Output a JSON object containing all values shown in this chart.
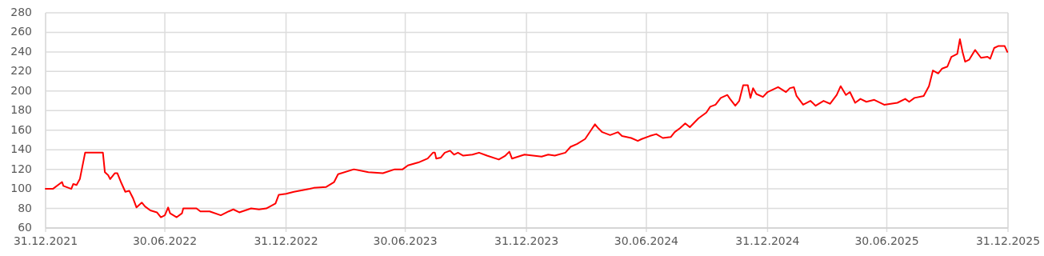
{
  "chart_data": {
    "type": "line",
    "x": [
      "2021-12-31",
      "2022-01-11",
      "2022-01-25",
      "2022-01-27",
      "2022-02-08",
      "2022-02-11",
      "2022-02-16",
      "2022-02-21",
      "2022-03-01",
      "2022-03-28",
      "2022-03-31",
      "2022-04-05",
      "2022-04-08",
      "2022-04-15",
      "2022-04-19",
      "2022-04-25",
      "2022-05-01",
      "2022-05-07",
      "2022-05-13",
      "2022-05-18",
      "2022-05-26",
      "2022-05-31",
      "2022-06-08",
      "2022-06-18",
      "2022-06-24",
      "2022-06-30",
      "2022-07-05",
      "2022-07-08",
      "2022-07-18",
      "2022-07-26",
      "2022-07-28",
      "2022-08-17",
      "2022-08-23",
      "2022-09-06",
      "2022-09-23",
      "2022-10-05",
      "2022-10-12",
      "2022-10-21",
      "2022-11-08",
      "2022-11-20",
      "2022-12-01",
      "2022-12-15",
      "2022-12-20",
      "2022-12-31",
      "2023-01-12",
      "2023-02-05",
      "2023-02-11",
      "2023-03-02",
      "2023-03-14",
      "2023-03-20",
      "2023-04-13",
      "2023-05-05",
      "2023-05-27",
      "2023-06-14",
      "2023-06-26",
      "2023-07-04",
      "2023-07-20",
      "2023-08-03",
      "2023-08-11",
      "2023-08-14",
      "2023-08-16",
      "2023-08-23",
      "2023-08-29",
      "2023-09-06",
      "2023-09-12",
      "2023-09-18",
      "2023-09-26",
      "2023-10-10",
      "2023-10-20",
      "2023-11-01",
      "2023-11-19",
      "2023-11-29",
      "2023-12-05",
      "2023-12-09",
      "2023-12-28",
      "2024-01-23",
      "2024-02-02",
      "2024-02-12",
      "2024-02-28",
      "2024-03-07",
      "2024-03-17",
      "2024-03-29",
      "2024-04-08",
      "2024-04-13",
      "2024-04-18",
      "2024-04-24",
      "2024-05-06",
      "2024-05-18",
      "2024-05-24",
      "2024-06-07",
      "2024-06-17",
      "2024-06-23",
      "2024-07-05",
      "2024-07-15",
      "2024-07-25",
      "2024-08-06",
      "2024-08-12",
      "2024-08-20",
      "2024-08-28",
      "2024-09-04",
      "2024-09-17",
      "2024-09-29",
      "2024-10-05",
      "2024-10-13",
      "2024-10-21",
      "2024-10-31",
      "2024-11-04",
      "2024-11-12",
      "2024-11-18",
      "2024-11-24",
      "2024-12-01",
      "2024-12-05",
      "2024-12-09",
      "2024-12-14",
      "2024-12-24",
      "2024-12-31",
      "2025-01-16",
      "2025-01-28",
      "2025-02-03",
      "2025-02-09",
      "2025-02-13",
      "2025-02-23",
      "2025-03-06",
      "2025-03-14",
      "2025-03-26",
      "2025-04-05",
      "2025-04-15",
      "2025-04-21",
      "2025-04-29",
      "2025-05-05",
      "2025-05-13",
      "2025-05-21",
      "2025-05-30",
      "2025-06-11",
      "2025-06-26",
      "2025-07-06",
      "2025-07-16",
      "2025-07-28",
      "2025-08-03",
      "2025-08-11",
      "2025-08-25",
      "2025-09-02",
      "2025-09-08",
      "2025-09-16",
      "2025-09-22",
      "2025-09-30",
      "2025-10-06",
      "2025-10-15",
      "2025-10-19",
      "2025-10-23",
      "2025-10-27",
      "2025-11-02",
      "2025-11-11",
      "2025-11-20",
      "2025-11-30",
      "2025-12-04",
      "2025-12-10",
      "2025-12-16",
      "2025-12-26",
      "2025-12-30"
    ],
    "series": [
      {
        "color": "#ff0000",
        "values": [
          100,
          100,
          107,
          103,
          100,
          105,
          104,
          110,
          137,
          137,
          117,
          114,
          110,
          116,
          116,
          106,
          97,
          98,
          90,
          81,
          86,
          82,
          78,
          76,
          71,
          73,
          81,
          75,
          71,
          75,
          80,
          80,
          77,
          77,
          73,
          77,
          79,
          76,
          80,
          79,
          80,
          85,
          94,
          95,
          97,
          100,
          101,
          102,
          107,
          115,
          120,
          117,
          116,
          120,
          120,
          124,
          127,
          131,
          137,
          137,
          131,
          132,
          137,
          139,
          135,
          137,
          134,
          135,
          137,
          134,
          130,
          134,
          138,
          131,
          135,
          133,
          135,
          134,
          137,
          143,
          146,
          151,
          161,
          166,
          162,
          158,
          155,
          158,
          154,
          152,
          149,
          151,
          154,
          156,
          152,
          153,
          158,
          162,
          167,
          163,
          172,
          178,
          184,
          186,
          193,
          196,
          192,
          185,
          190,
          206,
          206,
          193,
          203,
          197,
          194,
          199,
          204,
          199,
          203,
          204,
          195,
          186,
          190,
          185,
          190,
          187,
          196,
          205,
          196,
          199,
          188,
          192,
          189,
          191,
          186,
          187,
          188,
          192,
          189,
          193,
          195,
          205,
          221,
          218,
          223,
          225,
          235,
          238,
          253,
          240,
          230,
          232,
          242,
          234,
          235,
          233,
          244,
          246,
          246,
          240
        ]
      }
    ],
    "xlim": [
      "2021-12-31",
      "2025-12-31"
    ],
    "xticks": [
      {
        "value": "2021-12-31",
        "label": "31.12.2021"
      },
      {
        "value": "2022-06-30",
        "label": "30.06.2022"
      },
      {
        "value": "2022-12-31",
        "label": "31.12.2022"
      },
      {
        "value": "2023-06-30",
        "label": "30.06.2023"
      },
      {
        "value": "2023-12-31",
        "label": "31.12.2023"
      },
      {
        "value": "2024-06-30",
        "label": "30.06.2024"
      },
      {
        "value": "2024-12-31",
        "label": "31.12.2024"
      },
      {
        "value": "2025-06-30",
        "label": "30.06.2025"
      },
      {
        "value": "2025-12-31",
        "label": "31.12.2025"
      }
    ],
    "ylim": [
      60,
      280
    ],
    "yticks": [
      60,
      80,
      100,
      120,
      140,
      160,
      180,
      200,
      220,
      240,
      260,
      280
    ],
    "grid": true
  }
}
